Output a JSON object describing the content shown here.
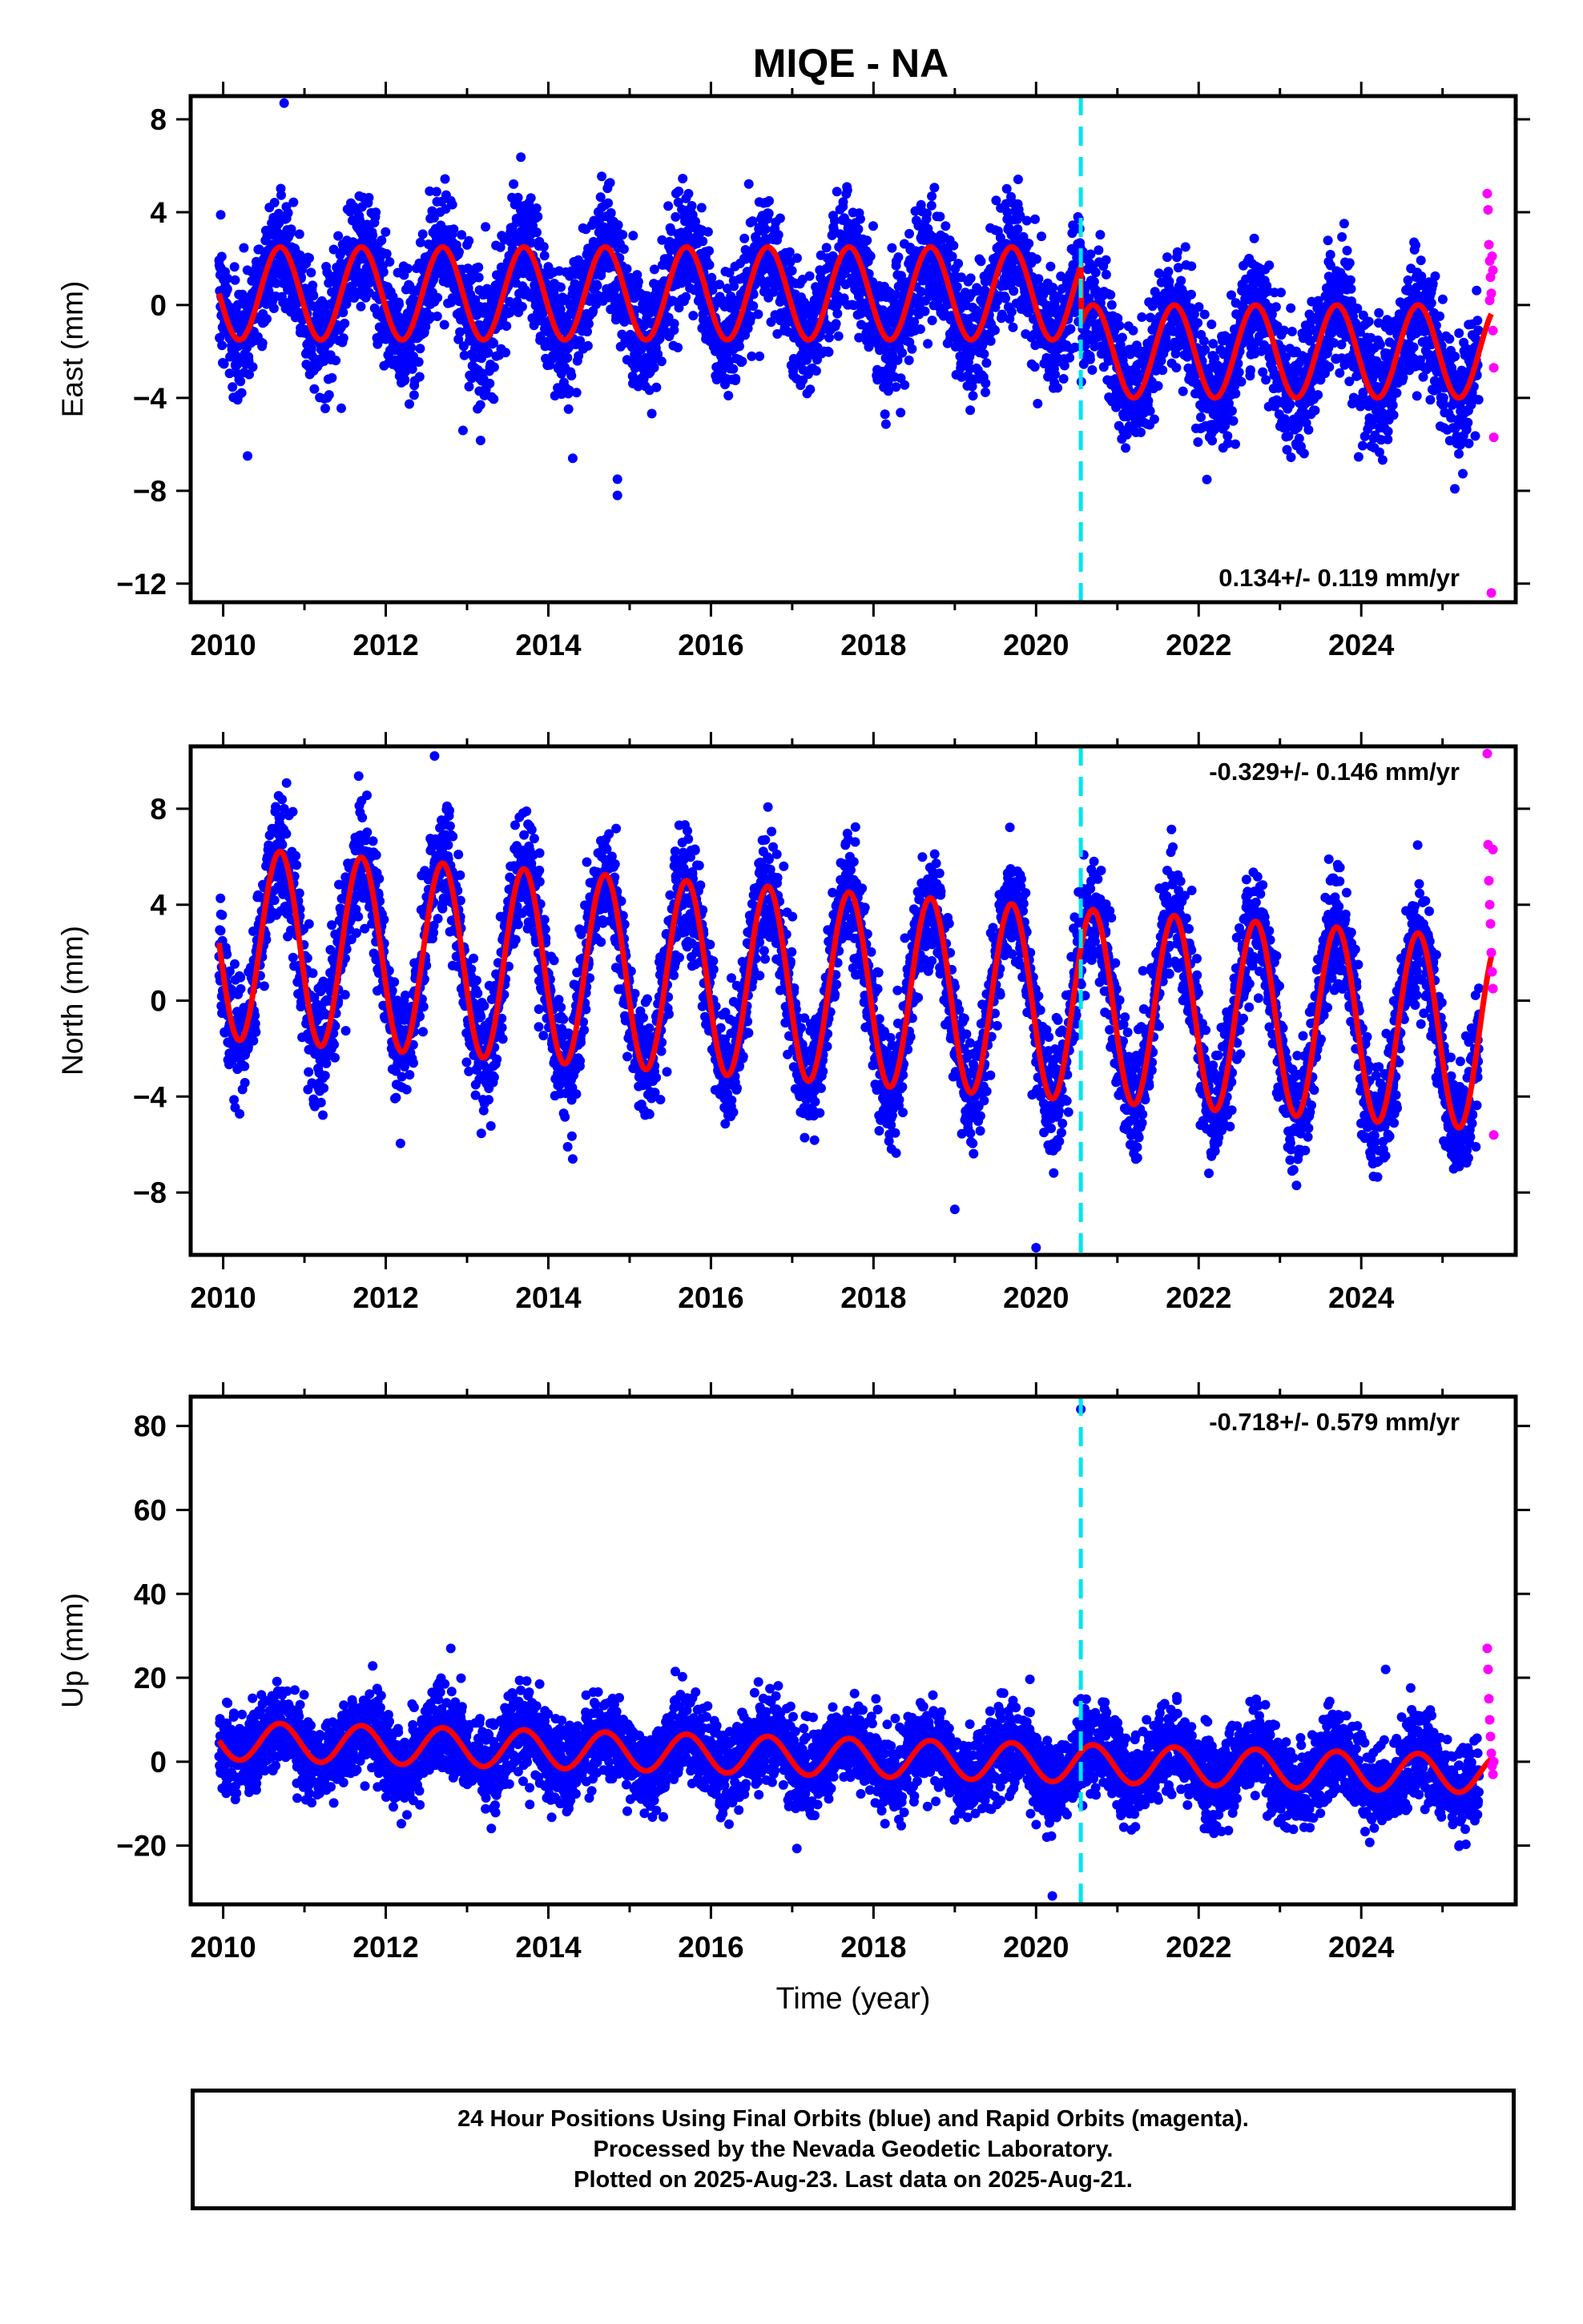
{
  "title": "MIQE - NA",
  "colors": {
    "final_points": "#0000ff",
    "rapid_points": "#ff00ff",
    "model_curve": "#ff0000",
    "event_line": "#00e5ee",
    "axis": "#000000"
  },
  "footer": {
    "lines": [
      "24 Hour Positions Using Final Orbits (blue) and Rapid Orbits (magenta).",
      "Processed by the Nevada Geodetic Laboratory.",
      "Plotted on 2025-Aug-23. Last data on 2025-Aug-21."
    ]
  },
  "chart_data": [
    {
      "type": "scatter",
      "panel": "East",
      "ylabel": "East (mm)",
      "xlabel": "",
      "xlim": [
        2009.6,
        2025.9
      ],
      "ylim": [
        -12.8,
        9.0
      ],
      "x_ticks": [
        2010,
        2012,
        2014,
        2016,
        2018,
        2020,
        2022,
        2024
      ],
      "y_ticks": [
        8,
        4,
        0,
        -4,
        -8,
        -12
      ],
      "y_tick_labels": [
        "8",
        "4",
        "0",
        "−4",
        "−8",
        "−12"
      ],
      "event_line_x": 2020.55,
      "rate_label": "0.134+/- 0.119 mm/yr",
      "rate_label_position": "bottom-right",
      "series": [
        {
          "name": "Final Orbits (blue)",
          "style": "points",
          "x_start": 2009.95,
          "x_end": 2025.45,
          "pre_event_level": 0.5,
          "post_event_level": -2.0,
          "seasonal_amplitude": 2.0,
          "scatter_sd": 1.3,
          "outliers": [
            [
              2010.75,
              8.7
            ],
            [
              2014.3,
              -6.6
            ],
            [
              2014.85,
              -8.2
            ],
            [
              2014.85,
              -7.5
            ],
            [
              2012.95,
              -5.4
            ],
            [
              2010.3,
              -6.5
            ]
          ]
        },
        {
          "name": "Rapid Orbits (magenta)",
          "style": "points",
          "x": [
            2025.55,
            2025.56,
            2025.57,
            2025.58,
            2025.59,
            2025.6,
            2025.61,
            2025.62,
            2025.62,
            2025.63,
            2025.63,
            2025.6,
            2025.58
          ],
          "y": [
            4.8,
            4.1,
            2.6,
            1.9,
            1.2,
            0.5,
            2.1,
            1.5,
            -1.1,
            -2.7,
            -5.7,
            -12.4,
            0.2
          ]
        },
        {
          "name": "Model fit",
          "style": "line",
          "x_start": 2009.95,
          "x_end": 2025.6,
          "pre_event_level": 0.5,
          "post_event_level": -2.0,
          "seasonal_amplitude": 2.0
        }
      ]
    },
    {
      "type": "scatter",
      "panel": "North",
      "ylabel": "North (mm)",
      "xlabel": "",
      "xlim": [
        2009.6,
        2025.9
      ],
      "ylim": [
        -10.6,
        10.6
      ],
      "x_ticks": [
        2010,
        2012,
        2014,
        2016,
        2018,
        2020,
        2022,
        2024
      ],
      "y_ticks": [
        8,
        4,
        0,
        -4,
        -8
      ],
      "y_tick_labels": [
        "8",
        "4",
        "0",
        "−4",
        "−8"
      ],
      "event_line_x": 2020.55,
      "rate_label": "-0.329+/- 0.146 mm/yr",
      "rate_label_position": "top-right",
      "series": [
        {
          "name": "Final Orbits (blue)",
          "style": "points",
          "x_start": 2009.95,
          "x_end": 2025.45,
          "trend_start": 2.4,
          "trend_end": -1.4,
          "seasonal_amplitude": 4.0,
          "scatter_sd": 1.2,
          "outliers": [
            [
              2012.6,
              10.2
            ],
            [
              2010.75,
              8.0
            ],
            [
              2020.0,
              -10.3
            ],
            [
              2019.0,
              -8.7
            ],
            [
              2014.3,
              -6.6
            ]
          ]
        },
        {
          "name": "Rapid Orbits (magenta)",
          "style": "points",
          "x": [
            2025.55,
            2025.56,
            2025.57,
            2025.58,
            2025.59,
            2025.6,
            2025.61,
            2025.62,
            2025.62,
            2025.63
          ],
          "y": [
            10.3,
            6.5,
            5.0,
            4.0,
            3.2,
            2.0,
            1.2,
            0.5,
            6.3,
            -5.6
          ]
        },
        {
          "name": "Model fit",
          "style": "line",
          "x_start": 2009.95,
          "x_end": 2025.6,
          "trend_start": 2.4,
          "trend_end": -1.4,
          "seasonal_amplitude": 4.0
        }
      ]
    },
    {
      "type": "scatter",
      "panel": "Up",
      "ylabel": "Up (mm)",
      "xlabel": "Time (year)",
      "xlim": [
        2009.6,
        2025.9
      ],
      "ylim": [
        -34,
        87
      ],
      "x_ticks": [
        2010,
        2012,
        2014,
        2016,
        2018,
        2020,
        2022,
        2024
      ],
      "y_ticks": [
        80,
        60,
        40,
        20,
        0,
        -20
      ],
      "y_tick_labels": [
        "80",
        "60",
        "40",
        "20",
        "0",
        "−20"
      ],
      "event_line_x": 2020.55,
      "rate_label": "-0.718+/- 0.579 mm/yr",
      "rate_label_position": "top-right",
      "series": [
        {
          "name": "Final Orbits (blue)",
          "style": "points",
          "x_start": 2009.95,
          "x_end": 2025.45,
          "trend_start": 5.0,
          "trend_end": -3.0,
          "seasonal_amplitude": 4.5,
          "scatter_sd": 5.0,
          "outliers": [
            [
              2020.55,
              84.0
            ],
            [
              2020.55,
              15.0
            ],
            [
              2020.2,
              -32.0
            ],
            [
              2012.8,
              27.0
            ],
            [
              2024.3,
              22.0
            ]
          ]
        },
        {
          "name": "Rapid Orbits (magenta)",
          "style": "points",
          "x": [
            2025.55,
            2025.56,
            2025.57,
            2025.58,
            2025.59,
            2025.6,
            2025.61,
            2025.62,
            2025.63
          ],
          "y": [
            27.0,
            22.0,
            15.0,
            10.0,
            6.0,
            2.0,
            -1.0,
            -3.0,
            0.0
          ]
        },
        {
          "name": "Model fit",
          "style": "line",
          "x_start": 2009.95,
          "x_end": 2025.6,
          "trend_start": 5.0,
          "trend_end": -3.0,
          "seasonal_amplitude": 4.5
        }
      ]
    }
  ]
}
